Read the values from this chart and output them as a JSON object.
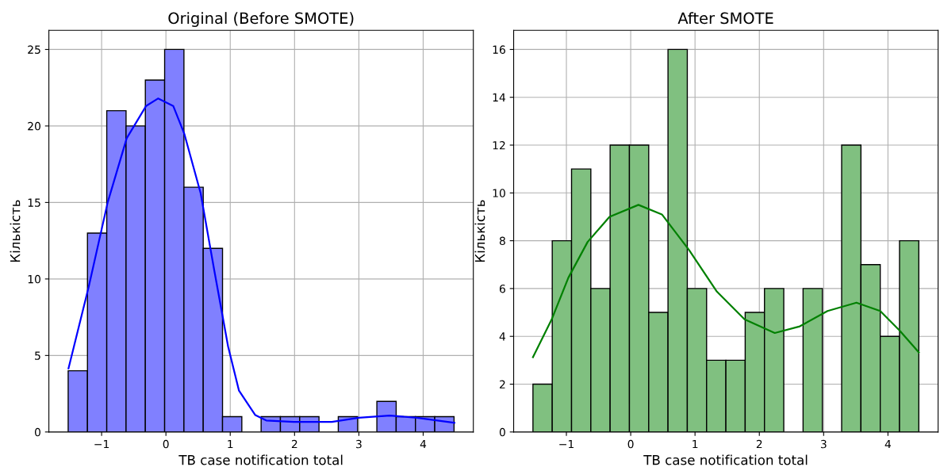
{
  "chart_data": [
    {
      "type": "histogram",
      "title": "Original (Before SMOTE)",
      "xlabel": "TB case notification total",
      "ylabel": "Кількість",
      "bins": [
        -1.52,
        -1.22,
        -0.92,
        -0.62,
        -0.32,
        -0.02,
        0.28,
        0.58,
        0.88,
        1.18,
        1.48,
        1.78,
        2.08,
        2.38,
        2.68,
        2.98,
        3.28,
        3.58,
        3.88,
        4.18,
        4.48
      ],
      "series": [
        {
          "color": "#8080ff",
          "values": [
            4,
            13,
            21,
            20,
            23,
            25,
            16,
            12,
            1,
            0,
            1,
            1,
            1,
            0,
            1,
            0,
            2,
            1,
            1,
            1
          ]
        },
        {
          "type": "line",
          "color": "#0000ff",
          "x": [
            -1.515,
            -1.2,
            -0.906,
            -0.61,
            -0.31,
            -0.12,
            0.115,
            0.285,
            0.54,
            0.75,
            0.966,
            1.136,
            1.39,
            1.56,
            1.99,
            2.58,
            3.0,
            3.48,
            3.9,
            4.485
          ],
          "values": [
            4.15,
            9.5,
            15.0,
            19.2,
            21.3,
            21.8,
            21.3,
            19.5,
            15.6,
            10.6,
            5.6,
            2.7,
            1.1,
            0.75,
            0.66,
            0.66,
            0.93,
            1.07,
            0.93,
            0.6
          ]
        }
      ],
      "xlim": [
        -1.82,
        4.78
      ],
      "xticks": [
        {
          "value": -1,
          "label": "−1"
        },
        0,
        1,
        2,
        3,
        4
      ],
      "ylim": [
        0,
        26.25
      ],
      "yticks": [
        0,
        5,
        10,
        15,
        20,
        25
      ],
      "grid": true
    },
    {
      "type": "histogram",
      "title": "After SMOTE",
      "xlabel": "TB case notification total",
      "ylabel": "Кількість",
      "bins": [
        -1.52,
        -1.22,
        -0.92,
        -0.62,
        -0.32,
        -0.02,
        0.28,
        0.58,
        0.88,
        1.18,
        1.48,
        1.78,
        2.08,
        2.38,
        2.68,
        2.98,
        3.28,
        3.58,
        3.88,
        4.18,
        4.48
      ],
      "series": [
        {
          "color": "#80c080",
          "values": [
            2,
            8,
            11,
            6,
            12,
            12,
            5,
            16,
            6,
            3,
            3,
            5,
            6,
            0,
            6,
            0,
            12,
            7,
            4,
            8
          ]
        },
        {
          "type": "line",
          "color": "#008000",
          "x": [
            -1.52,
            -1.23,
            -0.97,
            -0.67,
            -0.33,
            0.12,
            0.485,
            0.91,
            1.34,
            1.77,
            2.24,
            2.63,
            3.06,
            3.51,
            3.88,
            4.18,
            4.48
          ],
          "values": [
            3.13,
            4.7,
            6.45,
            7.95,
            9.0,
            9.5,
            9.1,
            7.6,
            5.87,
            4.71,
            4.14,
            4.42,
            5.06,
            5.41,
            5.06,
            4.25,
            3.33
          ]
        }
      ],
      "xlim": [
        -1.82,
        4.78
      ],
      "xticks": [
        {
          "value": -1,
          "label": "−1"
        },
        0,
        1,
        2,
        3,
        4
      ],
      "ylim": [
        0,
        16.8
      ],
      "yticks": [
        0,
        2,
        4,
        6,
        8,
        10,
        12,
        14,
        16
      ],
      "grid": true
    }
  ]
}
